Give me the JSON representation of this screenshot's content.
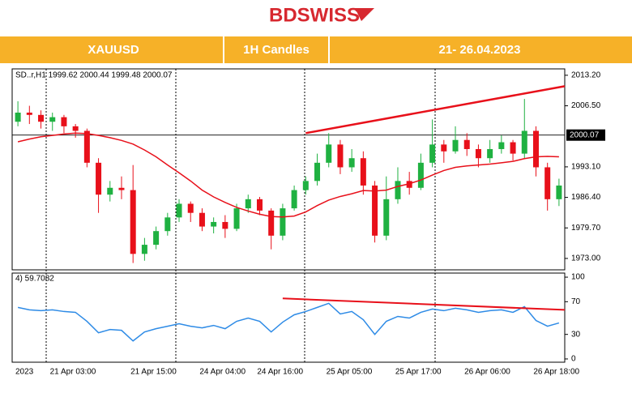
{
  "header": {
    "logo": "BDSWISS",
    "symbol": "XAUUSD",
    "timeframe": "1H Candles",
    "dates": "21- 26.04.2023"
  },
  "chart_data": [
    {
      "type": "candlestick",
      "subtitle": "SD..r,H1  1999.62 2000.44 1999.48 2000.07",
      "categories": [
        "2023",
        null,
        null,
        "21 Apr 03:00",
        null,
        null,
        null,
        null,
        null,
        null,
        "21 Apr 15:00",
        null,
        null,
        null,
        null,
        null,
        "24 Apr 04:00",
        null,
        null,
        null,
        null,
        "24 Apr 16:00",
        null,
        null,
        null,
        null,
        null,
        "25 Apr 05:00",
        null,
        null,
        null,
        null,
        null,
        "25 Apr 17:00",
        null,
        null,
        null,
        null,
        null,
        "26 Apr 06:00",
        null,
        null,
        null,
        null,
        null,
        "26 Apr 18:00",
        null,
        null
      ],
      "open": [
        2003,
        2005,
        2004.5,
        2003,
        2004,
        2002,
        2001,
        1994,
        1987,
        1988.5,
        1988,
        1974,
        1976,
        1979,
        1982,
        1985,
        1983,
        1980,
        1981,
        1979.5,
        1984,
        1986,
        1983.5,
        1978,
        1984,
        1988,
        1990,
        1994,
        1998,
        1993,
        1995,
        1989,
        1978,
        1986,
        1990,
        1988.5,
        1994,
        1998,
        1996.5,
        1999,
        1997,
        1995,
        1997,
        1998.5,
        1996,
        2001,
        1993,
        1986
      ],
      "high": [
        2007.5,
        2006.5,
        2005.5,
        2005,
        2004.5,
        2002.5,
        2001.5,
        1995,
        1990,
        1991,
        1993.5,
        1977.5,
        1980,
        1983,
        1986,
        1985.5,
        1984,
        1982,
        1982.5,
        1985,
        1987,
        1986.5,
        1984,
        1985,
        1989,
        1991,
        1996,
        2000.5,
        1999,
        1997,
        1996.5,
        1990,
        1991,
        1993,
        1992,
        1996,
        2003.5,
        1999,
        2002,
        2000.5,
        1998,
        1999,
        2000,
        1999,
        2008,
        2002,
        1994,
        1990.5
      ],
      "low": [
        2002,
        2002.5,
        2001.5,
        2001,
        2000.5,
        1999.5,
        1993,
        1983,
        1985.5,
        1986,
        1972,
        1972.5,
        1975,
        1978,
        1981,
        1981,
        1979,
        1978.5,
        1977.5,
        1979,
        1983,
        1982.5,
        1975,
        1977,
        1983.5,
        1987,
        1989,
        1993,
        1991.5,
        1992,
        1987,
        1976.5,
        1977,
        1985,
        1987,
        1988,
        1993,
        1994,
        1996,
        1995.5,
        1993,
        1994,
        1996,
        1994.5,
        1995,
        1991,
        1983.5,
        1984.5
      ],
      "close": [
        2005,
        2004.5,
        2003,
        2004,
        2002,
        2001,
        1994,
        1987,
        1988.5,
        1988,
        1974,
        1976,
        1979,
        1982,
        1985,
        1983,
        1980,
        1981,
        1979.5,
        1984,
        1986,
        1983.5,
        1978,
        1984,
        1988,
        1990,
        1994,
        1998,
        1993,
        1995,
        1989,
        1978,
        1986,
        1990,
        1988.5,
        1994,
        1998,
        1996.5,
        1999,
        1997,
        1995,
        1997,
        1998.5,
        1996,
        2001,
        1993,
        1986,
        1989
      ],
      "up_color": "#1fb141",
      "down_color": "#e8101a",
      "ma": {
        "color": "#e8101a",
        "values": [
          1998.6,
          1999.2,
          1999.7,
          2000.0,
          2000.3,
          2000.5,
          2000.4,
          2000.0,
          1999.5,
          1998.9,
          1998.1,
          1996.8,
          1995.3,
          1993.5,
          1991.8,
          1990.0,
          1988.0,
          1986.5,
          1985.3,
          1984.2,
          1983.4,
          1982.7,
          1982.2,
          1982.1,
          1982.3,
          1983.2,
          1984.6,
          1985.8,
          1986.6,
          1987.2,
          1987.9,
          1987.8,
          1988.0,
          1988.8,
          1989.4,
          1990.2,
          1991.3,
          1992.3,
          1993.0,
          1993.3,
          1993.5,
          1993.7,
          1994.0,
          1994.3,
          1994.9,
          1995.3,
          1995.4,
          1995.3
        ]
      },
      "trendline": {
        "color": "#e8101a",
        "x": [
          25,
          47.5
        ],
        "values": [
          2000.5,
          2010.8
        ]
      },
      "price_line": 2000.07,
      "ylim": [
        1970.5,
        2014.6
      ],
      "yticks": [
        {
          "value": 2013.2,
          "label": "2013.20"
        },
        {
          "value": 2006.5,
          "label": "2006.50"
        },
        {
          "value": 1993.1,
          "label": "1993.10"
        },
        {
          "value": 1986.4,
          "label": "1986.40"
        },
        {
          "value": 1979.7,
          "label": "1979.70"
        },
        {
          "value": 1973,
          "label": "1973.00"
        }
      ]
    },
    {
      "type": "line",
      "subtitle": "4) 59.7082",
      "color": "#2e8be6",
      "values": [
        63,
        60,
        59,
        60,
        58,
        57,
        46,
        32,
        36,
        35,
        22,
        33,
        37,
        40,
        43,
        40,
        38,
        41,
        37,
        46,
        50,
        46,
        33,
        45,
        54,
        58,
        63,
        68,
        55,
        58,
        48,
        30,
        46,
        52,
        50,
        57,
        61,
        59,
        62,
        60,
        57,
        59,
        60,
        57,
        64,
        47,
        40,
        44
      ],
      "trendline": {
        "color": "#e8101a",
        "x": [
          23,
          47.5
        ],
        "values": [
          74,
          60
        ]
      },
      "ylim": [
        -4,
        105
      ],
      "yticks": [
        100,
        70,
        30,
        0
      ]
    }
  ]
}
